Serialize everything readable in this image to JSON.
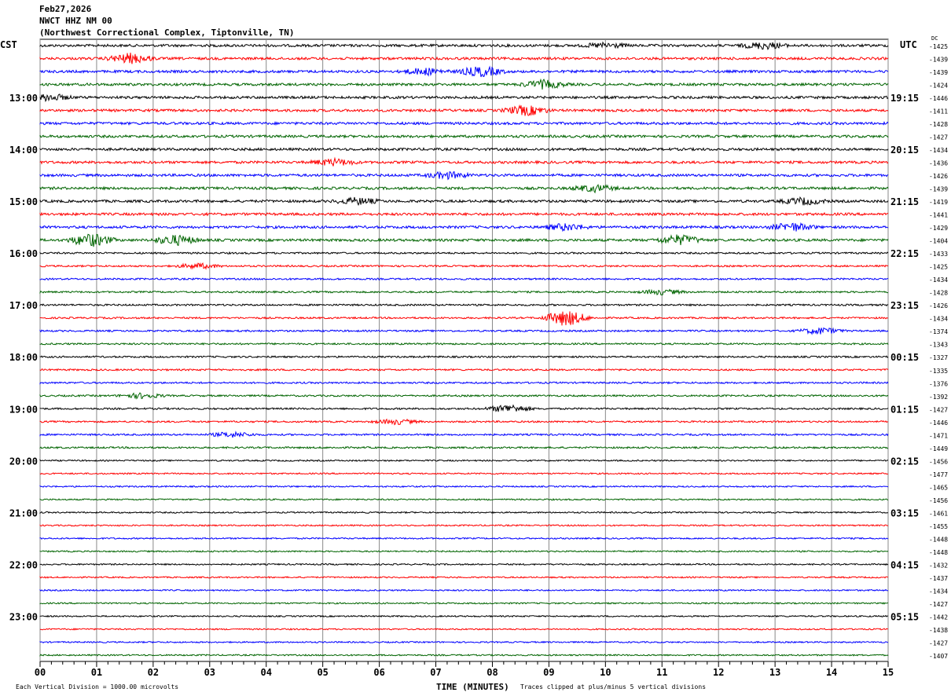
{
  "header": {
    "date": "Feb27,2026",
    "station": "NWCT HHZ NM 00",
    "location": "(Northwest Correctional Complex, Tiptonville, TN)"
  },
  "chart_data": {
    "type": "line",
    "title": "NWCT HHZ NM 00",
    "left_timezone": "CST",
    "right_timezone": "UTC",
    "dc_label": "DC",
    "colors": [
      "#000000",
      "#ff0000",
      "#0000ff",
      "#006400"
    ],
    "left_hour_labels": [
      "13:00",
      "14:00",
      "15:00",
      "16:00",
      "17:00",
      "18:00",
      "19:00",
      "20:00",
      "21:00",
      "22:00",
      "23:00"
    ],
    "right_hour_labels": [
      "19:15",
      "20:15",
      "21:15",
      "22:15",
      "23:15",
      "00:15",
      "01:15",
      "02:15",
      "03:15",
      "04:15",
      "05:15"
    ],
    "dc_offsets": [
      -1425,
      -1439,
      -1439,
      -1424,
      -1446,
      -1411,
      -1428,
      -1427,
      -1434,
      -1436,
      -1426,
      -1439,
      -1419,
      -1441,
      -1429,
      -1404,
      -1433,
      -1425,
      -1434,
      -1428,
      -1426,
      -1434,
      -1374,
      -1343,
      -1327,
      -1335,
      -1376,
      -1392,
      -1427,
      -1446,
      -1471,
      -1449,
      -1456,
      -1477,
      -1465,
      -1456,
      -1461,
      -1455,
      -1448,
      -1448,
      -1432,
      -1437,
      -1434,
      -1427,
      -1442,
      -1438,
      -1427,
      -1407
    ],
    "x_ticks": [
      "00",
      "01",
      "02",
      "03",
      "04",
      "05",
      "06",
      "07",
      "08",
      "09",
      "10",
      "11",
      "12",
      "13",
      "14",
      "15"
    ],
    "xlabel": "TIME (MINUTES)",
    "xlim": [
      0,
      15
    ],
    "scale_note": "Each Vertical Division = 1000.00 microvolts",
    "clip_note": "Traces clipped at plus/minus 5 vertical divisions",
    "grid": true
  }
}
